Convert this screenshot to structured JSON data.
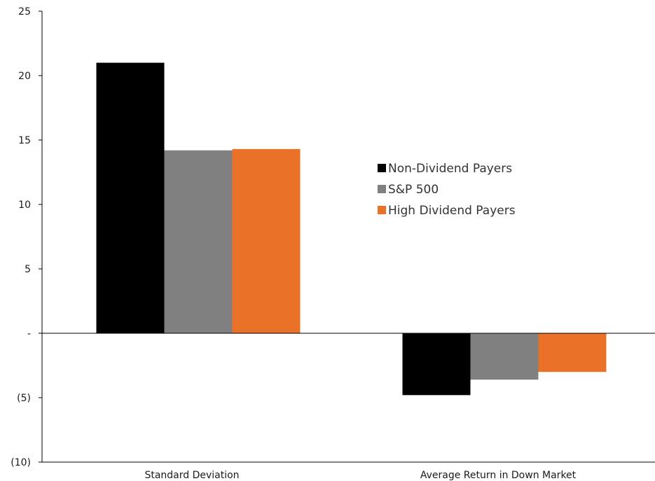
{
  "chart_data": {
    "type": "bar",
    "categories": [
      "Standard Deviation",
      "Average Return in Down Market"
    ],
    "series": [
      {
        "name": "Non-Dividend Payers",
        "color": "#000000",
        "values": [
          21.0,
          -4.8
        ]
      },
      {
        "name": "S&P 500",
        "color": "#808080",
        "values": [
          14.2,
          -3.6
        ]
      },
      {
        "name": "High Dividend Payers",
        "color": "#e97128",
        "values": [
          14.3,
          -3.0
        ]
      }
    ],
    "ylim": [
      -10,
      25
    ],
    "yticks": [
      {
        "value": 25,
        "label": "25"
      },
      {
        "value": 20,
        "label": "20"
      },
      {
        "value": 15,
        "label": "15"
      },
      {
        "value": 10,
        "label": "10"
      },
      {
        "value": 5,
        "label": "5"
      },
      {
        "value": 0,
        "label": "-"
      },
      {
        "value": -5,
        "label": "(5)"
      },
      {
        "value": -10,
        "label": "(10)"
      }
    ],
    "grid": false,
    "legend_position": "right"
  }
}
